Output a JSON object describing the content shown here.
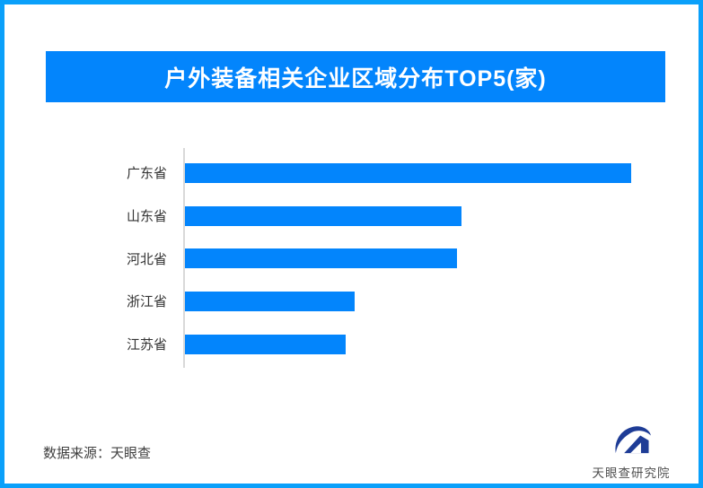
{
  "header": {
    "title": "户外装备相关企业区域分布TOP5(家)"
  },
  "chart_data": {
    "type": "bar",
    "orientation": "horizontal",
    "title": "户外装备相关企业区域分布TOP5(家)",
    "categories": [
      "广东省",
      "山东省",
      "河北省",
      "浙江省",
      "江苏省"
    ],
    "values": [
      100,
      62,
      61,
      38,
      36
    ],
    "value_unit": "relative bar length, % of longest bar (no numeric data labels or axis ticks shown)",
    "xlabel": "",
    "ylabel": "",
    "grid": false,
    "legend": false,
    "bar_color": "#0385fc",
    "axis_line_color": "#d9d9d9"
  },
  "footer": {
    "source": "数据来源：天眼查",
    "brand": "天眼查研究院"
  },
  "colors": {
    "outer_border": "#0aa0fa",
    "banner_background": "#0385fc",
    "title_text": "#ffffff",
    "bar": "#0385fc",
    "category_label_text": "#333333",
    "footer_text": "#404040",
    "logo_navy": "#1e3c96",
    "background": "#ffffff"
  },
  "icons": {
    "brand_mark": "tianyancha-eye-icon"
  }
}
